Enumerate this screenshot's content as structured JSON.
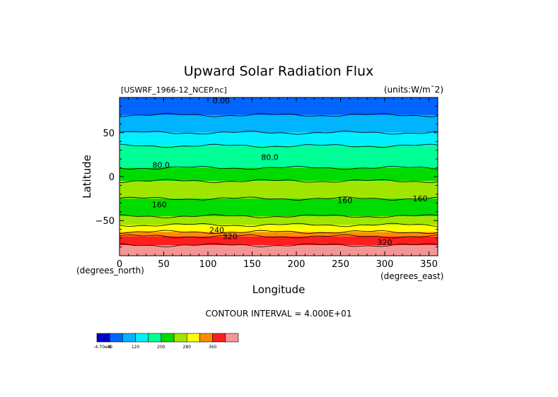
{
  "chart_data": {
    "type": "heatmap",
    "title": "Upward Solar Radiation Flux",
    "file_label": "[USWRF_1966-12_NCEP.nc]",
    "units_label": "(units:W/m¯2)",
    "xlabel": "Longitude",
    "ylabel": "Latitude",
    "x_unit_label": "(degrees_east)",
    "y_unit_label": "(degrees_north)",
    "xlim": [
      0,
      360
    ],
    "ylim": [
      -90,
      90
    ],
    "x_ticks": [
      0,
      50,
      100,
      150,
      200,
      250,
      300,
      350
    ],
    "y_ticks": [
      50,
      0,
      -50
    ],
    "contour_interval_text": "CONTOUR INTERVAL = 4.000E+01",
    "contour_labels": [
      "0.00",
      "80.0",
      "80.0",
      "160",
      "160",
      "160",
      "240",
      "320",
      "320"
    ],
    "legend": {
      "tick_labels": [
        "-4.70e-6",
        "40",
        "120",
        "200",
        "280",
        "360"
      ],
      "levels": [
        0,
        40,
        80,
        120,
        160,
        200,
        240,
        280,
        320,
        360
      ],
      "colors": [
        "#0000c8",
        "#0064ff",
        "#00b4ff",
        "#00f0ff",
        "#00ff96",
        "#00dc00",
        "#a0e600",
        "#ffff00",
        "#ff8c00",
        "#ff1e1e",
        "#f59696"
      ]
    },
    "lat_bands": [
      {
        "from": 90,
        "to": 70,
        "value": 0
      },
      {
        "from": 70,
        "to": 50,
        "value": 40
      },
      {
        "from": 50,
        "to": 35,
        "value": 80
      },
      {
        "from": 35,
        "to": 10,
        "value": 120
      },
      {
        "from": 10,
        "to": -5,
        "value": 160
      },
      {
        "from": -5,
        "to": -25,
        "value": 200
      },
      {
        "from": -25,
        "to": -45,
        "value": 160
      },
      {
        "from": -45,
        "to": -55,
        "value": 200
      },
      {
        "from": -55,
        "to": -63,
        "value": 240
      },
      {
        "from": -63,
        "to": -68,
        "value": 280
      },
      {
        "from": -68,
        "to": -78,
        "value": 320
      },
      {
        "from": -78,
        "to": -90,
        "value": 360
      }
    ]
  }
}
